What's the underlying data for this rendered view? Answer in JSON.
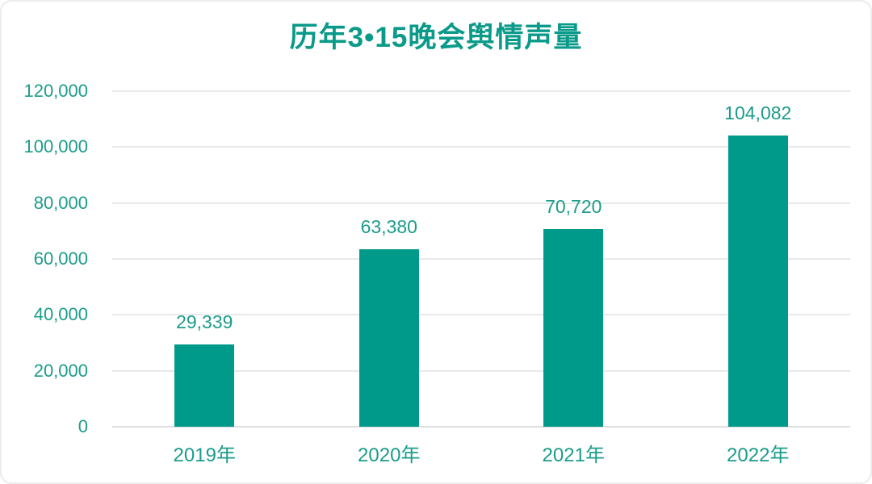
{
  "chart_data": {
    "type": "bar",
    "title": "历年3•15晚会舆情声量",
    "categories": [
      "2019年",
      "2020年",
      "2021年",
      "2022年"
    ],
    "values": [
      29339,
      63380,
      70720,
      104082
    ],
    "value_labels": [
      "29,339",
      "63,380",
      "70,720",
      "104,082"
    ],
    "xlabel": "",
    "ylabel": "",
    "ylim": [
      0,
      120000
    ],
    "ytick_step": 20000,
    "ytick_labels": [
      "120,000",
      "100,000",
      "80,000",
      "60,000",
      "40,000",
      "20,000",
      "0"
    ],
    "grid": "horizontal",
    "legend_position": "none",
    "colors": {
      "bar": "#009a8b",
      "title_text": "#0a9a89",
      "axis_text": "#1c9c8b",
      "value_text": "#1c9c8b",
      "gridline": "#e9e9e9",
      "card_border": "#ececec",
      "background": "#ffffff"
    }
  }
}
